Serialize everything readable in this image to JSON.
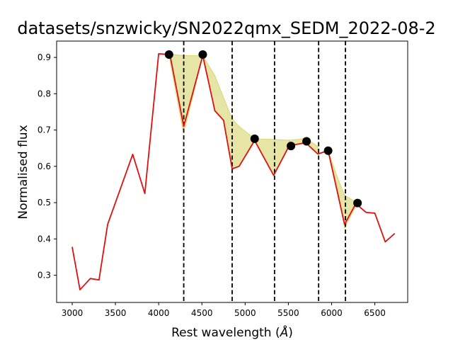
{
  "chart_data": {
    "type": "line",
    "title": "datasets/snzwicky/SN2022qmx_SEDM_2022-08-2",
    "xlabel": "Rest wavelength (",
    "xlabel_unit": "Å",
    "xlabel_close": ")",
    "ylabel": "Normalised flux",
    "xlim": [
      2820,
      6880
    ],
    "ylim": [
      0.225,
      0.945
    ],
    "xticks": [
      3000,
      3500,
      4000,
      4500,
      5000,
      5500,
      6000,
      6500
    ],
    "yticks": [
      0.3,
      0.4,
      0.5,
      0.6,
      0.7,
      0.8,
      0.9
    ],
    "grid": false,
    "series": [
      {
        "style": "line",
        "color": "#dd1111",
        "x": [
          3000,
          3090,
          3210,
          3310,
          3410,
          3700,
          3840,
          4000,
          4130,
          4290,
          4510,
          4650,
          4750,
          4850,
          4930,
          5110,
          5330,
          5510,
          5700,
          5840,
          5960,
          6150,
          6280,
          6400,
          6500,
          6620,
          6730
        ],
        "y": [
          0.378,
          0.26,
          0.291,
          0.287,
          0.44,
          0.633,
          0.525,
          0.91,
          0.908,
          0.71,
          0.905,
          0.753,
          0.727,
          0.593,
          0.6,
          0.671,
          0.575,
          0.657,
          0.665,
          0.634,
          0.643,
          0.44,
          0.497,
          0.473,
          0.471,
          0.392,
          0.415
        ]
      },
      {
        "style": "markers",
        "color": "#000000",
        "x": [
          4120,
          4510,
          5110,
          5530,
          5710,
          5960,
          6300
        ],
        "y": [
          0.908,
          0.908,
          0.676,
          0.656,
          0.669,
          0.643,
          0.499
        ]
      }
    ],
    "vlines": [
      4290,
      4850,
      5340,
      5850,
      6160
    ],
    "vline_color": "#000000",
    "shade_color": "#c9c63a",
    "shaded_regions": [
      {
        "x": [
          4120,
          4280,
          4310,
          4510
        ],
        "y_upper": [
          0.91,
          0.905,
          0.905,
          0.905
        ],
        "y_lower": [
          0.905,
          0.7,
          0.71,
          0.905
        ]
      },
      {
        "x": [
          4510,
          4650,
          4750,
          4850,
          4930,
          5110
        ],
        "y_upper": [
          0.905,
          0.85,
          0.79,
          0.73,
          0.71,
          0.676
        ],
        "y_lower": [
          0.905,
          0.753,
          0.727,
          0.593,
          0.6,
          0.676
        ]
      },
      {
        "x": [
          5110,
          5330,
          5510
        ],
        "y_upper": [
          0.676,
          0.674,
          0.672
        ],
        "y_lower": [
          0.671,
          0.575,
          0.655
        ]
      },
      {
        "x": [
          5510,
          5640,
          5700,
          5840
        ],
        "y_upper": [
          0.672,
          0.675,
          0.678,
          0.655
        ],
        "y_lower": [
          0.655,
          0.661,
          0.663,
          0.64
        ]
      },
      {
        "x": [
          5960,
          6060,
          6150,
          6300
        ],
        "y_upper": [
          0.643,
          0.575,
          0.52,
          0.499
        ],
        "y_lower": [
          0.643,
          0.55,
          0.43,
          0.499
        ]
      }
    ]
  }
}
